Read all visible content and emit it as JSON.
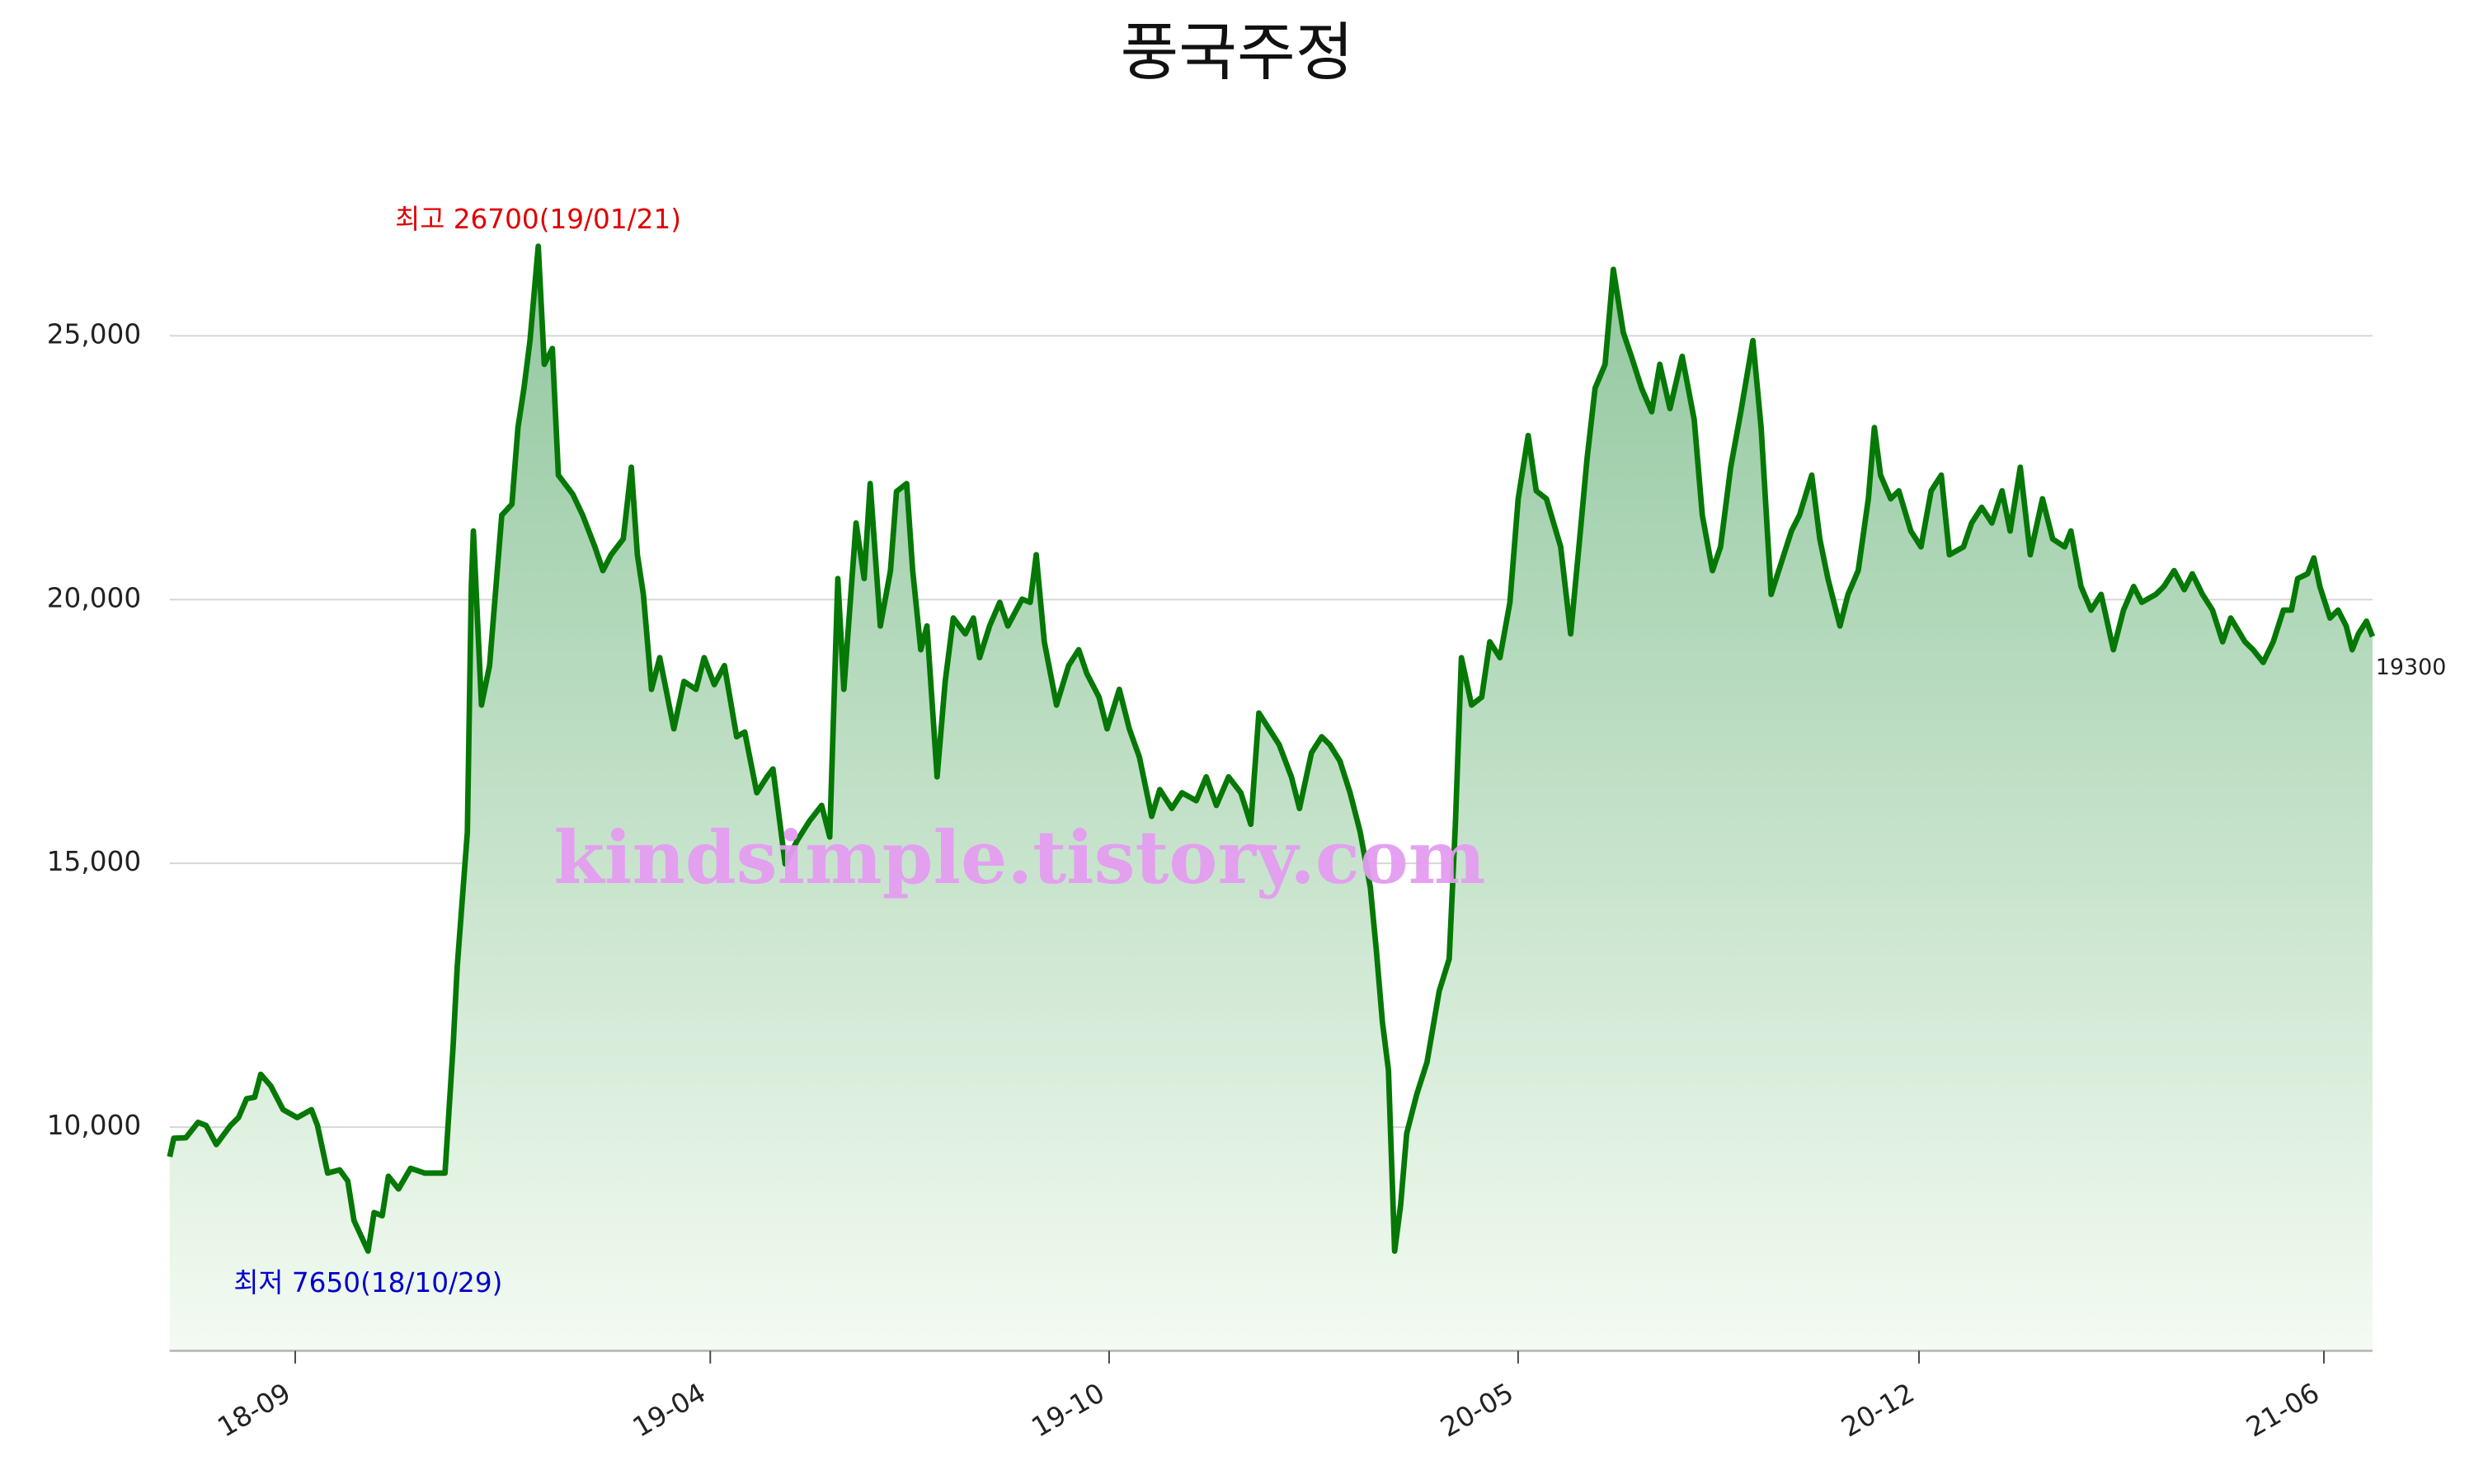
{
  "chart_data": {
    "type": "area-line",
    "title": "풍국주정",
    "annotations": {
      "high": "최고 26700(19/01/21)",
      "low": "최저 7650(18/10/29)"
    },
    "watermark": "kindsimple.tistory.com",
    "color": "#067806",
    "x": [
      "18/07/23",
      "18/07/25",
      "18/07/31",
      "18/08/06",
      "18/08/10",
      "18/08/15",
      "18/08/22",
      "18/08/26",
      "18/08/30",
      "18/09/03",
      "18/09/06",
      "18/09/11",
      "18/09/17",
      "18/09/24",
      "18/10/01",
      "18/10/04",
      "18/10/09",
      "18/10/15",
      "18/10/19",
      "18/10/22",
      "18/10/29",
      "18/11/01",
      "18/11/05",
      "18/11/08",
      "18/11/13",
      "18/11/19",
      "18/11/26",
      "18/12/06",
      "18/12/10",
      "18/12/12",
      "18/12/17",
      "18/12/19",
      "18/12/20",
      "18/12/24",
      "18/12/28",
      "19/01/03",
      "19/01/08",
      "19/01/11",
      "19/01/14",
      "19/01/17",
      "19/01/21",
      "19/01/24",
      "19/01/28",
      "19/01/31",
      "19/02/07",
      "19/02/12",
      "19/02/18",
      "19/02/22",
      "19/02/26",
      "19/03/04",
      "19/03/08",
      "19/03/11",
      "19/03/14",
      "19/03/18",
      "19/03/22",
      "19/03/29",
      "19/04/03",
      "19/04/09",
      "19/04/13",
      "19/04/18",
      "19/04/23",
      "19/04/29",
      "19/05/03",
      "19/05/09",
      "19/05/14",
      "19/05/17",
      "19/05/23",
      "19/05/29",
      "19/06/04",
      "19/06/10",
      "19/06/14",
      "19/06/18",
      "19/06/21",
      "19/06/27",
      "19/07/01",
      "19/07/04",
      "19/07/09",
      "19/07/14",
      "19/07/17",
      "19/07/22",
      "19/07/25",
      "19/07/29",
      "19/08/01",
      "19/08/06",
      "19/08/10",
      "19/08/14",
      "19/08/20",
      "19/08/24",
      "19/08/27",
      "19/09/01",
      "19/09/06",
      "19/09/10",
      "19/09/17",
      "19/09/21",
      "19/09/24",
      "19/09/28",
      "19/10/04",
      "19/10/10",
      "19/10/15",
      "19/10/19",
      "19/10/25",
      "19/10/29",
      "19/11/04",
      "19/11/09",
      "19/11/14",
      "19/11/20",
      "19/11/24",
      "19/11/30",
      "19/12/05",
      "19/12/12",
      "19/12/17",
      "19/12/22",
      "19/12/28",
      "20/01/03",
      "20/01/08",
      "20/01/12",
      "20/01/17",
      "20/01/22",
      "20/01/28",
      "20/02/01",
      "20/02/07",
      "20/02/12",
      "20/02/16",
      "20/02/21",
      "20/02/26",
      "20/03/02",
      "20/03/07",
      "20/03/10",
      "20/03/13",
      "20/03/16",
      "20/03/19",
      "20/03/22",
      "20/03/25",
      "20/03/30",
      "20/04/04",
      "20/04/10",
      "20/04/15",
      "20/04/18",
      "20/04/21",
      "20/04/26",
      "20/05/01",
      "20/05/05",
      "20/05/10",
      "20/05/15",
      "20/05/19",
      "20/05/24",
      "20/05/28",
      "20/06/02",
      "20/06/09",
      "20/06/14",
      "20/06/18",
      "20/06/22",
      "20/06/26",
      "20/07/01",
      "20/07/05",
      "20/07/10",
      "20/07/14",
      "20/07/19",
      "20/07/24",
      "20/07/28",
      "20/08/02",
      "20/08/08",
      "20/08/14",
      "20/08/18",
      "20/08/23",
      "20/08/27",
      "20/09/01",
      "20/09/06",
      "20/09/12",
      "20/09/16",
      "20/09/21",
      "20/09/26",
      "20/10/01",
      "20/10/05",
      "20/10/11",
      "20/10/15",
      "20/10/19",
      "20/10/25",
      "20/10/29",
      "20/11/03",
      "20/11/08",
      "20/11/11",
      "20/11/14",
      "20/11/19",
      "20/11/23",
      "20/11/29",
      "20/12/04",
      "20/12/09",
      "20/12/14",
      "20/12/18",
      "20/12/25",
      "20/12/29",
      "21/01/03",
      "21/01/08",
      "21/01/13",
      "21/01/17",
      "21/01/22",
      "21/01/27",
      "21/02/02",
      "21/02/07",
      "21/02/13",
      "21/02/16",
      "21/02/21",
      "21/02/26",
      "21/03/03",
      "21/03/09",
      "21/03/14",
      "21/03/19",
      "21/03/23",
      "21/03/30",
      "21/04/03",
      "21/04/08",
      "21/04/13",
      "21/04/17",
      "21/04/22",
      "21/04/27",
      "21/05/02",
      "21/05/06",
      "21/05/13",
      "21/05/17",
      "21/05/22",
      "21/05/27",
      "21/06/01",
      "21/06/05",
      "21/06/08",
      "21/06/13",
      "21/06/16",
      "21/06/19",
      "21/06/24",
      "21/06/28",
      "21/07/02",
      "21/07/05",
      "21/07/08",
      "21/07/12",
      "21/07/15"
    ],
    "values": [
      9440,
      9790,
      9800,
      10090,
      10030,
      9670,
      10030,
      10180,
      10540,
      10570,
      11000,
      10780,
      10330,
      10180,
      10330,
      10030,
      9130,
      9190,
      8980,
      8230,
      7650,
      8380,
      8320,
      9070,
      8830,
      9220,
      9130,
      9130,
      11530,
      13040,
      15590,
      20250,
      21300,
      18000,
      18750,
      21600,
      21810,
      23260,
      24010,
      24910,
      26700,
      24460,
      24760,
      22360,
      22000,
      21600,
      21000,
      20550,
      20850,
      21150,
      22510,
      20850,
      20100,
      18300,
      18900,
      17550,
      18450,
      18300,
      18900,
      18390,
      18750,
      17400,
      17490,
      16340,
      16640,
      16790,
      14990,
      15440,
      15800,
      16100,
      15500,
      20400,
      18300,
      21450,
      20400,
      22200,
      19500,
      20550,
      22050,
      22200,
      20550,
      19050,
      19500,
      16640,
      18450,
      19650,
      19350,
      19650,
      18900,
      19500,
      19950,
      19500,
      20010,
      19950,
      20850,
      19200,
      18000,
      18750,
      19050,
      18600,
      18150,
      17550,
      18300,
      17550,
      17010,
      15890,
      16400,
      16040,
      16340,
      16190,
      16640,
      16100,
      16640,
      16340,
      15740,
      17850,
      17550,
      17250,
      16640,
      16040,
      17100,
      17400,
      17250,
      16940,
      16340,
      15590,
      14540,
      13340,
      11990,
      11080,
      7650,
      8530,
      9880,
      10630,
      11230,
      12580,
      13190,
      15740,
      18900,
      18000,
      18150,
      19200,
      18900,
      19950,
      21910,
      23110,
      22060,
      21910,
      21000,
      19350,
      21000,
      22660,
      24010,
      24460,
      26260,
      25060,
      24610,
      24010,
      23560,
      24460,
      23620,
      24610,
      23410,
      21600,
      20550,
      21000,
      22510,
      23560,
      24910,
      23260,
      20100,
      20700,
      21300,
      21600,
      22360,
      21150,
      20400,
      19500,
      20100,
      20550,
      21910,
      23260,
      22360,
      21910,
      22060,
      21300,
      21000,
      22060,
      22360,
      20850,
      21000,
      21450,
      21750,
      21450,
      22060,
      21300,
      22510,
      20850,
      21910,
      21150,
      21000,
      21300,
      20250,
      19800,
      20100,
      19050,
      19800,
      20250,
      19950,
      20100,
      20250,
      20550,
      20190,
      20490,
      20100,
      19800,
      19200,
      19650,
      19200,
      19050,
      18810,
      19200,
      19800,
      19800,
      20400,
      20490,
      20790,
      20250,
      19650,
      19800,
      19500,
      19050,
      19350,
      19590,
      19300
    ],
    "xlim": [
      "18/07/23",
      "21/07/15"
    ],
    "xticks": [
      {
        "value": "18/09/23",
        "label": "18-09"
      },
      {
        "value": "19/04/16",
        "label": "19-04"
      },
      {
        "value": "19/10/30",
        "label": "19-10"
      },
      {
        "value": "20/05/19",
        "label": "20-05"
      },
      {
        "value": "20/12/03",
        "label": "20-12"
      },
      {
        "value": "21/06/21",
        "label": "21-06"
      }
    ],
    "ylim": [
      5760,
      28000
    ],
    "yticks": [
      {
        "value": 10000,
        "label": "10,000"
      },
      {
        "value": 15000,
        "label": "15,000"
      },
      {
        "value": 20000,
        "label": "20,000"
      },
      {
        "value": 25000,
        "label": "25,000"
      }
    ],
    "grid": true
  }
}
